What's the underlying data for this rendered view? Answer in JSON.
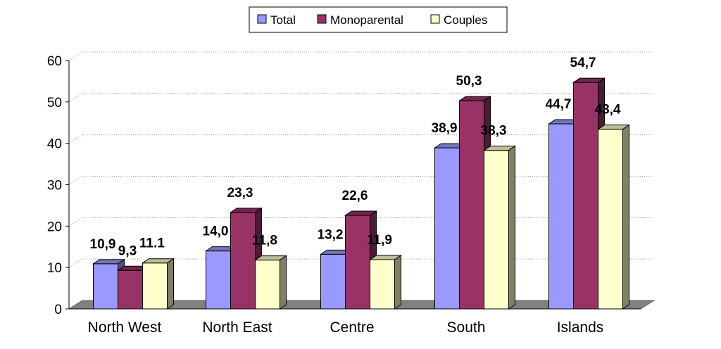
{
  "chart_data": {
    "type": "bar",
    "categories": [
      "North West",
      "North East",
      "Centre",
      "South",
      "Islands"
    ],
    "series": [
      {
        "name": "Total",
        "values": [
          10.9,
          14.0,
          13.2,
          38.9,
          44.7
        ],
        "labels": [
          "10,9",
          "14,0",
          "13,2",
          "38,9",
          "44,7"
        ],
        "color": "#9999ff"
      },
      {
        "name": "Monoparental",
        "values": [
          9.3,
          23.3,
          22.6,
          50.3,
          54.7
        ],
        "labels": [
          "9,3",
          "23,3",
          "22,6",
          "50,3",
          "54,7"
        ],
        "color": "#993366"
      },
      {
        "name": "Couples",
        "values": [
          11.1,
          11.8,
          11.9,
          38.3,
          43.4
        ],
        "labels": [
          "11.1",
          "11,8",
          "11,9",
          "38,3",
          "43,4"
        ],
        "color": "#ffffcc"
      }
    ],
    "ylim": [
      0,
      60
    ],
    "yticks": [
      "0",
      "10",
      "20",
      "30",
      "40",
      "50",
      "60"
    ],
    "grid": true,
    "legend_position": "top-center",
    "three_d": true
  }
}
